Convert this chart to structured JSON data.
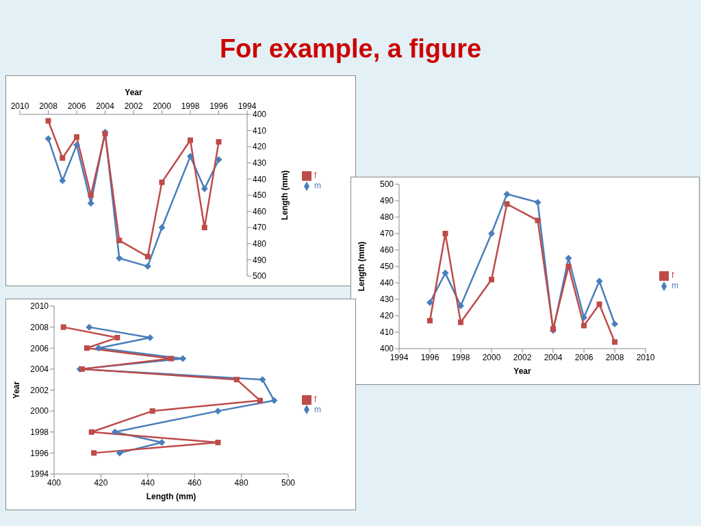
{
  "chart_data": [
    {
      "type": "line",
      "title": "For example, a figure",
      "xlabel": "Year",
      "ylabel": "Length (mm)",
      "x": [
        1996,
        1997,
        1998,
        2000,
        2001,
        2003,
        2004,
        2005,
        2006,
        2007,
        2008
      ],
      "xlim": [
        2010,
        1994
      ],
      "xticks": [
        2010,
        2008,
        2006,
        2004,
        2002,
        2000,
        1998,
        1996,
        1994
      ],
      "ylim": [
        500,
        400
      ],
      "yticks": [
        400,
        410,
        420,
        430,
        440,
        450,
        460,
        470,
        480,
        490,
        500
      ],
      "grid": false,
      "legend": "right",
      "series": [
        {
          "name": "m",
          "color": "#4a7ebb",
          "marker": "diamond",
          "values": [
            428,
            446,
            426,
            470,
            494,
            489,
            411,
            455,
            419,
            441,
            415
          ]
        },
        {
          "name": "f",
          "color": "#be4b48",
          "marker": "square",
          "values": [
            417,
            470,
            416,
            442,
            488,
            478,
            412,
            450,
            414,
            427,
            404
          ]
        }
      ]
    },
    {
      "type": "line",
      "xlabel": "Year",
      "ylabel": "Length (mm)",
      "x": [
        1996,
        1997,
        1998,
        2000,
        2001,
        2003,
        2004,
        2005,
        2006,
        2007,
        2008
      ],
      "xlim": [
        1994,
        2010
      ],
      "xticks": [
        1994,
        1996,
        1998,
        2000,
        2002,
        2004,
        2006,
        2008,
        2010
      ],
      "ylim": [
        400,
        500
      ],
      "yticks": [
        400,
        410,
        420,
        430,
        440,
        450,
        460,
        470,
        480,
        490,
        500
      ],
      "grid": false,
      "legend": "right",
      "series": [
        {
          "name": "m",
          "color": "#4a7ebb",
          "marker": "diamond",
          "values": [
            428,
            446,
            426,
            470,
            494,
            489,
            411,
            455,
            419,
            441,
            415
          ]
        },
        {
          "name": "f",
          "color": "#be4b48",
          "marker": "square",
          "values": [
            417,
            470,
            416,
            442,
            488,
            478,
            412,
            450,
            414,
            427,
            404
          ]
        }
      ]
    },
    {
      "type": "line",
      "xlabel": "Length (mm)",
      "ylabel": "Year",
      "xlim": [
        400,
        500
      ],
      "xticks": [
        400,
        420,
        440,
        460,
        480,
        500
      ],
      "ylim": [
        1994,
        2010
      ],
      "yticks": [
        1994,
        1996,
        1998,
        2000,
        2002,
        2004,
        2006,
        2008,
        2010
      ],
      "grid": false,
      "legend": "right",
      "series": [
        {
          "name": "m",
          "color": "#4a7ebb",
          "marker": "diamond",
          "x": [
            428,
            446,
            426,
            470,
            494,
            489,
            411,
            455,
            419,
            441,
            415
          ],
          "values": [
            1996,
            1997,
            1998,
            2000,
            2001,
            2003,
            2004,
            2005,
            2006,
            2007,
            2008
          ]
        },
        {
          "name": "f",
          "color": "#be4b48",
          "marker": "square",
          "x": [
            417,
            470,
            416,
            442,
            488,
            478,
            412,
            450,
            414,
            427,
            404
          ],
          "values": [
            1996,
            1997,
            1998,
            2000,
            2001,
            2003,
            2004,
            2005,
            2006,
            2007,
            2008
          ]
        }
      ]
    }
  ]
}
